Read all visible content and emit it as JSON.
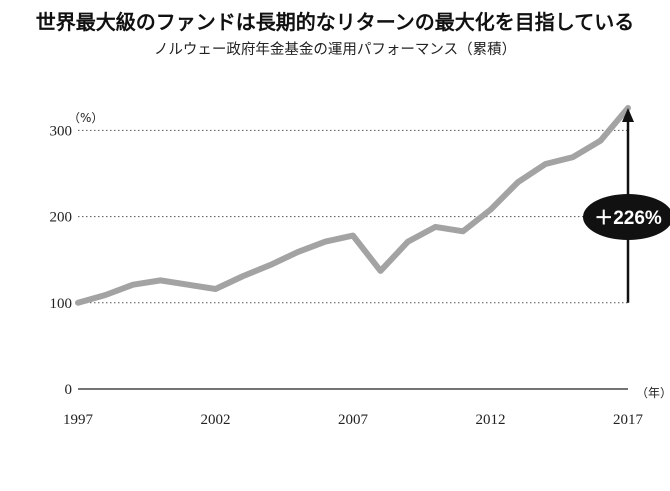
{
  "title": "世界最大級のファンドは長期的なリターンの最大化を目指している",
  "subtitle": "ノルウェー政府年金基金の運用パフォーマンス（累積）",
  "colors": {
    "line": "#a3a3a3",
    "axis": "#222222",
    "grid": "#555555",
    "badge": "#111111",
    "arrow": "#111111"
  },
  "chart_data": {
    "type": "line",
    "title": "ノルウェー政府年金基金の運用パフォーマンス（累積）",
    "ylabel": "（%）",
    "xlabel": "（年）",
    "xlim": [
      1997,
      2017
    ],
    "ylim": [
      0,
      330
    ],
    "y_ticks": [
      0,
      100,
      200,
      300
    ],
    "y_tick_labels": [
      "0",
      "100",
      "200",
      "300"
    ],
    "x_ticks": [
      1997,
      2002,
      2007,
      2012,
      2017
    ],
    "x_tick_labels": [
      "1997",
      "2002",
      "2007",
      "2012",
      "2017"
    ],
    "grid": "dotted horizontal at 100, 200, 300",
    "annotation": {
      "label": "＋226%",
      "x": 2017,
      "from": 100,
      "to": 326
    },
    "series": [
      {
        "x": [
          1997,
          1998,
          1999,
          2000,
          2001,
          2002,
          2003,
          2004,
          2005,
          2006,
          2007,
          2008,
          2009,
          2010,
          2011,
          2012,
          2013,
          2014,
          2015,
          2016,
          2017
        ],
        "values": [
          100,
          109,
          121,
          126,
          121,
          116,
          131,
          144,
          159,
          171,
          178,
          137,
          171,
          188,
          183,
          208,
          240,
          261,
          269,
          288,
          326
        ]
      }
    ]
  }
}
